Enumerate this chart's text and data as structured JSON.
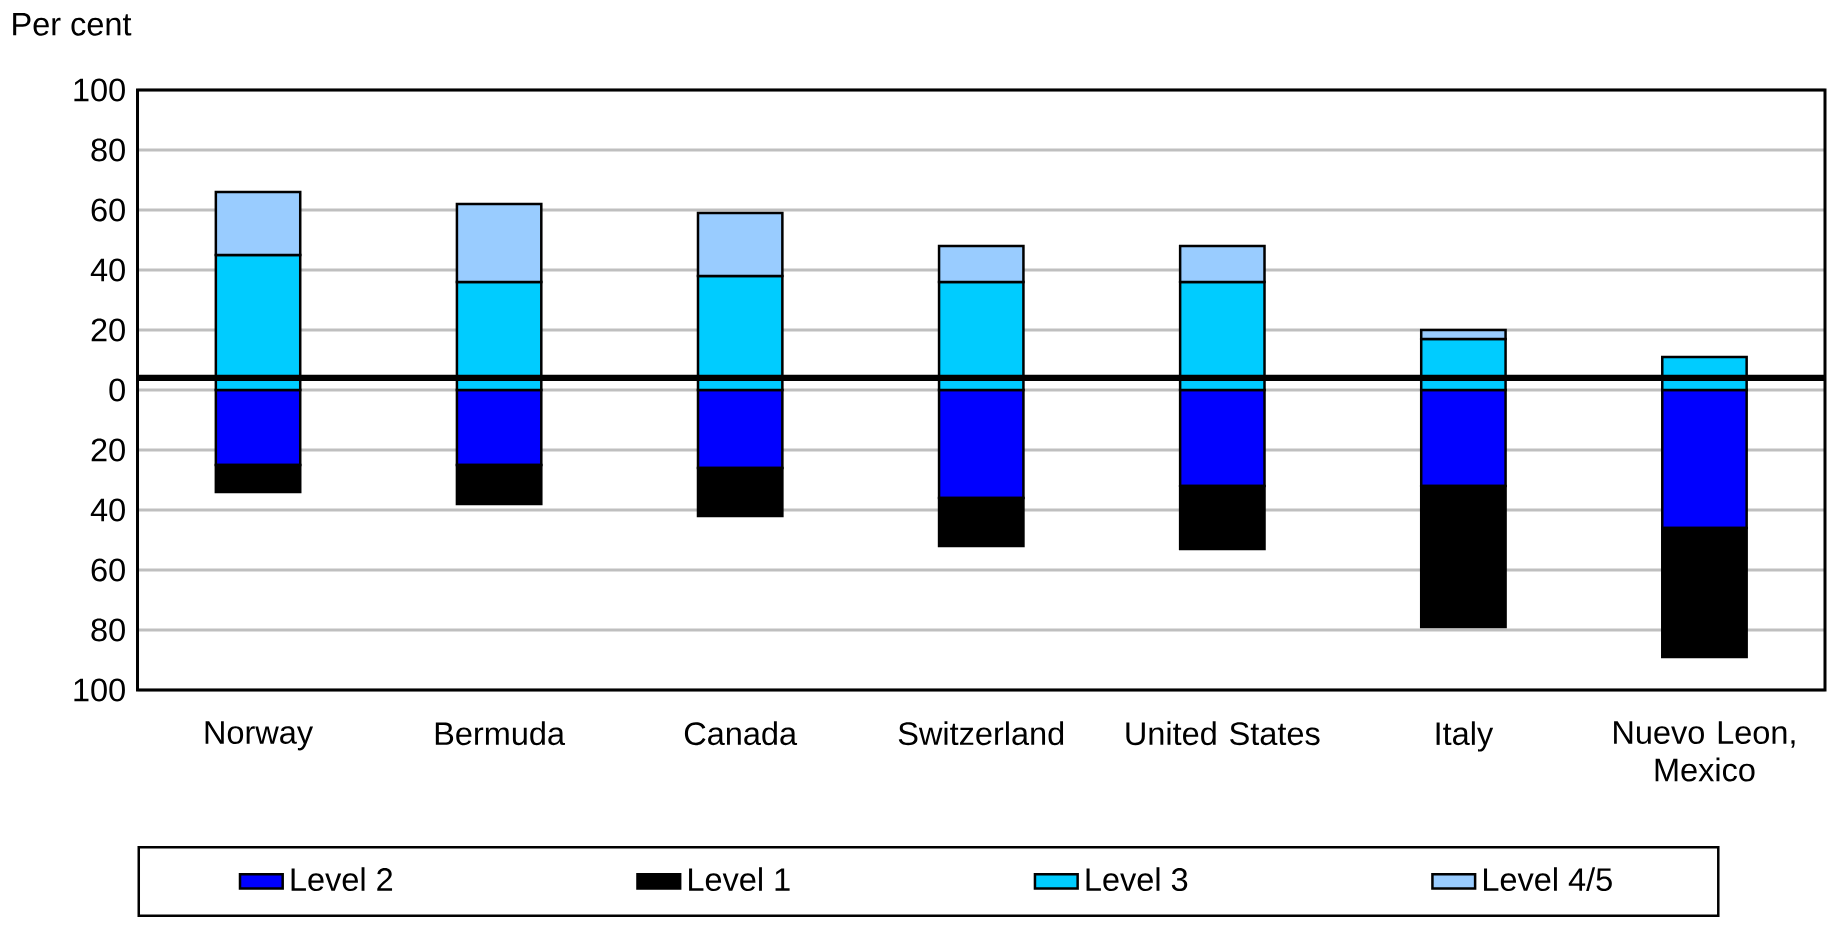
{
  "chart_data": {
    "type": "bar",
    "stacked": true,
    "ylabel": "Per cent",
    "categories": [
      "Norway",
      "Bermuda",
      "Canada",
      "Switzerland",
      "United States",
      "Italy",
      "Nuevo Leon, Mexico"
    ],
    "series": [
      {
        "name": "Level 2",
        "color": "#0000ff",
        "values": [
          -25,
          -25,
          -26,
          -36,
          -32,
          -32,
          -46
        ]
      },
      {
        "name": "Level 1",
        "color": "#000000",
        "values": [
          -9,
          -13,
          -16,
          -16,
          -21,
          -47,
          -43
        ]
      },
      {
        "name": "Level 3",
        "color": "#00ccff",
        "values": [
          45,
          36,
          38,
          36,
          36,
          17,
          11
        ]
      },
      {
        "name": "Level 4/5",
        "color": "#99ccff",
        "values": [
          21,
          26,
          21,
          12,
          12,
          3,
          null
        ]
      }
    ],
    "ylim": [
      -100,
      100
    ],
    "yticks": [
      {
        "value": -100,
        "label": "100"
      },
      {
        "value": -80,
        "label": "80"
      },
      {
        "value": -60,
        "label": "60"
      },
      {
        "value": -40,
        "label": "40"
      },
      {
        "value": -20,
        "label": "20"
      },
      0,
      20,
      40,
      60,
      80,
      100
    ],
    "ref_lines": [
      {
        "axis": "y",
        "value": 4,
        "color": "#000000"
      }
    ],
    "grid": "y",
    "legend": "bottom"
  }
}
